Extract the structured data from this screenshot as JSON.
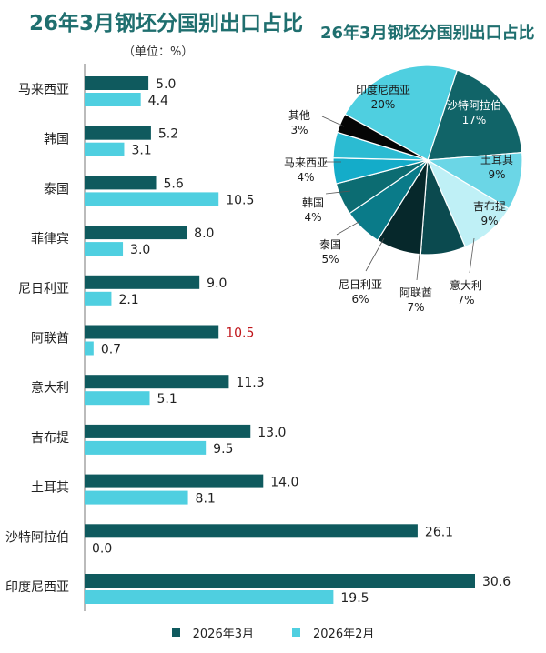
{
  "bar_chart": {
    "title": "26年3月钢坯分国别出口占比",
    "unit": "（单位：%）"
  },
  "pie_chart": {
    "title": "26年3月钢坯分国别出口占比"
  },
  "legend": {
    "items": [
      {
        "label": "2026年3月",
        "color": "#0f5a5e"
      },
      {
        "label": "2026年2月",
        "color": "#4fcfe0"
      }
    ]
  },
  "chart_data": [
    {
      "type": "bar",
      "orientation": "horizontal",
      "title": "26年3月钢坯分国别出口占比",
      "unit": "（单位：%）",
      "categories": [
        "马来西亚",
        "韩国",
        "泰国",
        "菲律宾",
        "尼日利亚",
        "阿联酋",
        "意大利",
        "吉布提",
        "土耳其",
        "沙特阿拉伯",
        "印度尼西亚"
      ],
      "series": [
        {
          "name": "2026年3月",
          "color": "#0f5a5e",
          "values": [
            5.0,
            5.2,
            5.6,
            8.0,
            9.0,
            10.5,
            11.3,
            13.0,
            14.0,
            26.1,
            30.6
          ]
        },
        {
          "name": "2026年2月",
          "color": "#4fcfe0",
          "values": [
            4.4,
            3.1,
            10.5,
            3.0,
            2.1,
            0.7,
            5.1,
            9.5,
            8.1,
            0.0,
            19.5
          ]
        }
      ],
      "highlight": {
        "category": "阿联酋",
        "series": "2026年3月",
        "label_color": "#c0161b"
      },
      "xlim": [
        0,
        31
      ],
      "legend_position": "bottom"
    },
    {
      "type": "pie",
      "title": "26年3月钢坯分国别出口占比",
      "slices": [
        {
          "label": "印度尼西亚",
          "value": 20,
          "display": "20%",
          "color": "#4fcfe0",
          "label_color": "#1a1a1a"
        },
        {
          "label": "沙特阿拉伯",
          "value": 17,
          "display": "17%",
          "color": "#116468",
          "label_color": "#ffffff"
        },
        {
          "label": "土耳其",
          "value": 9,
          "display": "9%",
          "color": "#6bd6e6",
          "label_color": "#1a1a1a"
        },
        {
          "label": "吉布提",
          "value": 9,
          "display": "9%",
          "color": "#bff0f6",
          "label_color": "#1a1a1a"
        },
        {
          "label": "意大利",
          "value": 7,
          "display": "7%",
          "color": "#0b4a4f",
          "label_color": "#1a1a1a"
        },
        {
          "label": "阿联酋",
          "value": 7,
          "display": "7%",
          "color": "#06282b",
          "label_color": "#1a1a1a"
        },
        {
          "label": "尼日利亚",
          "value": 6,
          "display": "6%",
          "color": "#0a7b89",
          "label_color": "#1a1a1a"
        },
        {
          "label": "泰国",
          "value": 5,
          "display": "5%",
          "color": "#0c6c72",
          "label_color": "#1a1a1a"
        },
        {
          "label": "韩国",
          "value": 4,
          "display": "4%",
          "color": "#14acc9",
          "label_color": "#1a1a1a"
        },
        {
          "label": "马来西亚",
          "value": 4,
          "display": "4%",
          "color": "#2bbbd2",
          "label_color": "#1a1a1a"
        },
        {
          "label": "其他",
          "value": 3,
          "display": "3%",
          "color": "#050505",
          "label_color": "#1a1a1a"
        }
      ]
    }
  ]
}
